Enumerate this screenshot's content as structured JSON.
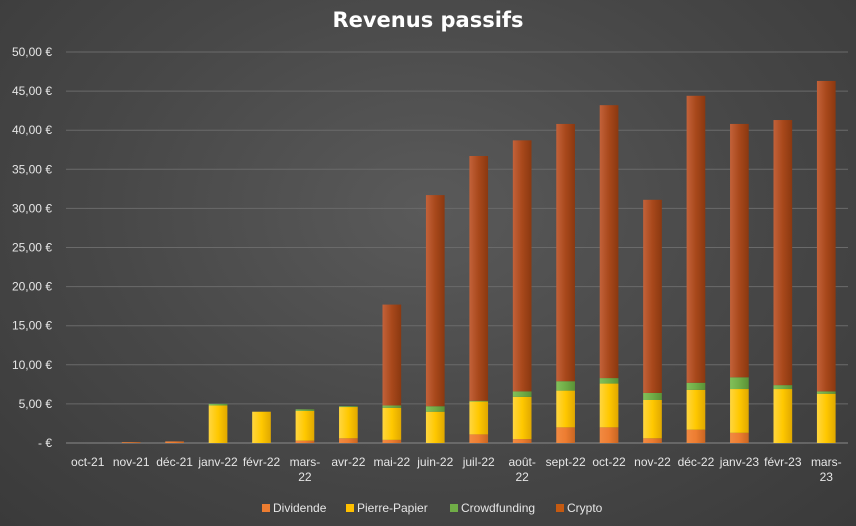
{
  "chart_data": {
    "type": "bar",
    "stacked": true,
    "title": "Revenus passifs",
    "xlabel": "",
    "ylabel": "",
    "ylim": [
      0,
      50
    ],
    "yticks": [
      0,
      5,
      10,
      15,
      20,
      25,
      30,
      35,
      40,
      45,
      50
    ],
    "ytick_labels": [
      " -   €",
      "5,00 €",
      "10,00 €",
      "15,00 €",
      "20,00 €",
      "25,00 €",
      "30,00 €",
      "35,00 €",
      "40,00 €",
      "45,00 €",
      "50,00 €"
    ],
    "grid": true,
    "legend_position": "bottom",
    "categories": [
      "oct-21",
      "nov-21",
      "déc-21",
      "janv-22",
      "févr-22",
      "mars-22",
      "avr-22",
      "mai-22",
      "juin-22",
      "juil-22",
      "août-22",
      "sept-22",
      "oct-22",
      "nov-22",
      "déc-22",
      "janv-23",
      "févr-23",
      "mars-23"
    ],
    "category_lines": [
      [
        "oct-21"
      ],
      [
        "nov-21"
      ],
      [
        "déc-21"
      ],
      [
        "janv-22"
      ],
      [
        "févr-22"
      ],
      [
        "mars-",
        "22"
      ],
      [
        "avr-22"
      ],
      [
        "mai-22"
      ],
      [
        "juin-22"
      ],
      [
        "juil-22"
      ],
      [
        "août-",
        "22"
      ],
      [
        "sept-22"
      ],
      [
        "oct-22"
      ],
      [
        "nov-22"
      ],
      [
        "déc-22"
      ],
      [
        "janv-23"
      ],
      [
        "févr-23"
      ],
      [
        "mars-",
        "23"
      ]
    ],
    "series": [
      {
        "name": "Dividende",
        "color": "#ed7d31",
        "values": [
          0,
          0.1,
          0.2,
          0,
          0,
          0.3,
          0.6,
          0.4,
          0,
          1.1,
          0.5,
          2.0,
          2.0,
          0.6,
          1.7,
          1.3,
          0,
          0
        ]
      },
      {
        "name": "Pierre-Papier",
        "color": "#ffc000",
        "values": [
          0,
          0,
          0,
          4.8,
          4.0,
          3.8,
          4.0,
          4.1,
          4.0,
          4.2,
          5.4,
          4.7,
          5.6,
          4.9,
          5.1,
          5.6,
          6.9,
          6.3
        ]
      },
      {
        "name": "Crowdfunding",
        "color": "#70ad47",
        "values": [
          0,
          0,
          0,
          0.2,
          0,
          0.2,
          0.1,
          0.3,
          0.7,
          0.1,
          0.7,
          1.2,
          0.7,
          0.9,
          0.9,
          1.5,
          0.5,
          0.3
        ]
      },
      {
        "name": "Crypto",
        "color": "#c55a11",
        "values": [
          0,
          0,
          0,
          0,
          0,
          0,
          0,
          12.9,
          27.0,
          31.3,
          32.1,
          32.9,
          34.9,
          24.7,
          36.7,
          32.4,
          33.9,
          39.7
        ]
      }
    ]
  }
}
